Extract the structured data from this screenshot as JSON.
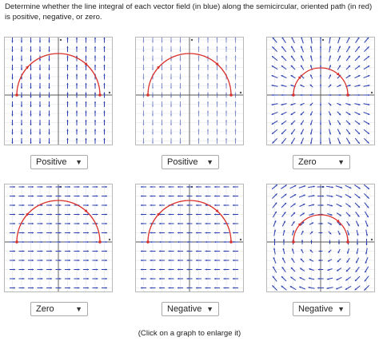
{
  "instructions": "Determine whether the line integral of each vector field (in blue) along the semicircular, oriented path (in red) is positive, negative, or zero.",
  "hint": "(Click on a graph to enlarge it)",
  "colors": {
    "field": "#2b3fb0",
    "path": "#d9302b",
    "grid": "#e2e2e2",
    "axis": "#555555"
  },
  "graphs": [
    {
      "field": "vertical-right-up",
      "answer": "Positive",
      "chevron": "chevron-down-icon"
    },
    {
      "field": "vertical-right-up-light",
      "answer": "Positive",
      "chevron": "chevron-down-icon"
    },
    {
      "field": "radial",
      "answer": "Zero",
      "chevron": "chevron-down-icon"
    },
    {
      "field": "horizontal-right",
      "answer": "Zero",
      "chevron": "chevron-down-icon"
    },
    {
      "field": "horizontal-left",
      "answer": "Negative",
      "chevron": "chevron-down-icon"
    },
    {
      "field": "rotational-cw",
      "answer": "Negative",
      "chevron": "chevron-down-icon"
    }
  ]
}
